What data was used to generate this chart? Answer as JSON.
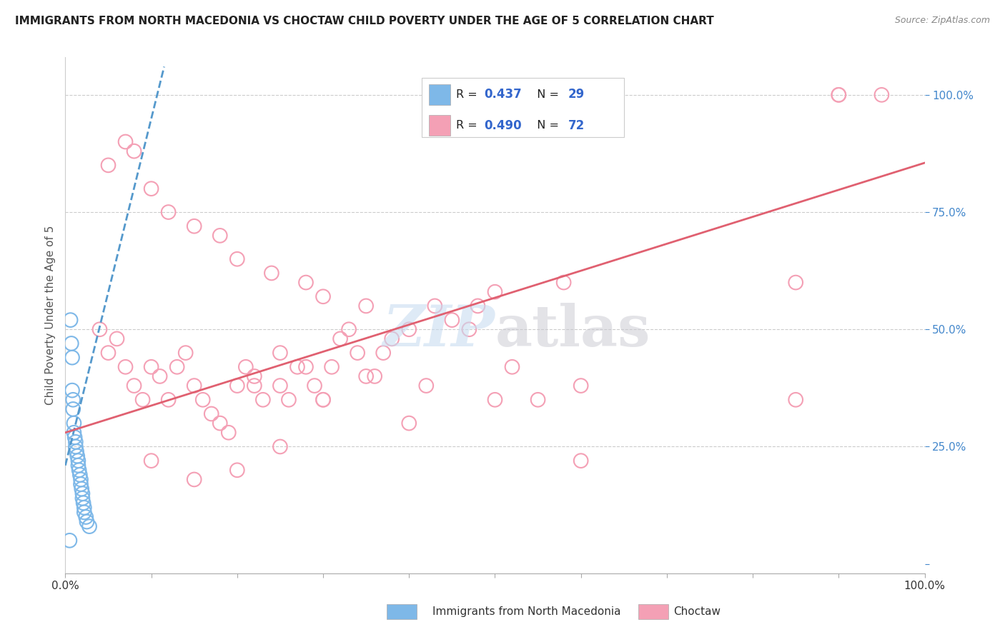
{
  "title": "IMMIGRANTS FROM NORTH MACEDONIA VS CHOCTAW CHILD POVERTY UNDER THE AGE OF 5 CORRELATION CHART",
  "source": "Source: ZipAtlas.com",
  "ylabel": "Child Poverty Under the Age of 5",
  "xlim": [
    0.0,
    1.0
  ],
  "ylim": [
    -0.02,
    1.08
  ],
  "blue_color": "#7EB8E8",
  "pink_color": "#F4A0B5",
  "blue_line_color": "#5599CC",
  "pink_line_color": "#E06070",
  "blue_scatter_x": [
    0.006,
    0.007,
    0.008,
    0.008,
    0.009,
    0.009,
    0.01,
    0.01,
    0.011,
    0.012,
    0.012,
    0.013,
    0.014,
    0.015,
    0.015,
    0.016,
    0.017,
    0.018,
    0.018,
    0.019,
    0.02,
    0.02,
    0.021,
    0.022,
    0.022,
    0.024,
    0.025,
    0.028,
    0.005
  ],
  "blue_scatter_y": [
    0.52,
    0.47,
    0.44,
    0.37,
    0.35,
    0.33,
    0.3,
    0.28,
    0.27,
    0.26,
    0.25,
    0.24,
    0.23,
    0.22,
    0.21,
    0.2,
    0.19,
    0.18,
    0.17,
    0.16,
    0.15,
    0.14,
    0.13,
    0.12,
    0.11,
    0.1,
    0.09,
    0.08,
    0.05
  ],
  "pink_scatter_x": [
    0.04,
    0.05,
    0.06,
    0.07,
    0.08,
    0.08,
    0.09,
    0.1,
    0.1,
    0.11,
    0.12,
    0.12,
    0.13,
    0.14,
    0.15,
    0.15,
    0.16,
    0.17,
    0.18,
    0.18,
    0.19,
    0.2,
    0.2,
    0.21,
    0.22,
    0.22,
    0.23,
    0.24,
    0.25,
    0.25,
    0.26,
    0.27,
    0.28,
    0.28,
    0.29,
    0.3,
    0.3,
    0.31,
    0.32,
    0.33,
    0.34,
    0.35,
    0.36,
    0.37,
    0.38,
    0.4,
    0.42,
    0.43,
    0.45,
    0.47,
    0.48,
    0.5,
    0.52,
    0.55,
    0.58,
    0.6,
    0.85,
    0.9,
    0.05,
    0.07,
    0.1,
    0.15,
    0.2,
    0.25,
    0.3,
    0.35,
    0.4,
    0.5,
    0.6,
    0.85,
    0.9,
    0.95
  ],
  "pink_scatter_y": [
    0.5,
    0.45,
    0.48,
    0.42,
    0.88,
    0.38,
    0.35,
    0.8,
    0.42,
    0.4,
    0.75,
    0.35,
    0.42,
    0.45,
    0.72,
    0.38,
    0.35,
    0.32,
    0.7,
    0.3,
    0.28,
    0.65,
    0.38,
    0.42,
    0.4,
    0.38,
    0.35,
    0.62,
    0.45,
    0.38,
    0.35,
    0.42,
    0.6,
    0.42,
    0.38,
    0.35,
    0.57,
    0.42,
    0.48,
    0.5,
    0.45,
    0.55,
    0.4,
    0.45,
    0.48,
    0.5,
    0.38,
    0.55,
    0.52,
    0.5,
    0.55,
    0.58,
    0.42,
    0.35,
    0.6,
    0.22,
    0.6,
    1.0,
    0.85,
    0.9,
    0.22,
    0.18,
    0.2,
    0.25,
    0.35,
    0.4,
    0.3,
    0.35,
    0.38,
    0.35,
    1.0,
    1.0
  ],
  "blue_trend_x0": 0.0,
  "blue_trend_y0": 0.21,
  "blue_trend_x1": 0.115,
  "blue_trend_y1": 1.06,
  "pink_trend_x0": 0.0,
  "pink_trend_y0": 0.28,
  "pink_trend_x1": 1.0,
  "pink_trend_y1": 0.855
}
